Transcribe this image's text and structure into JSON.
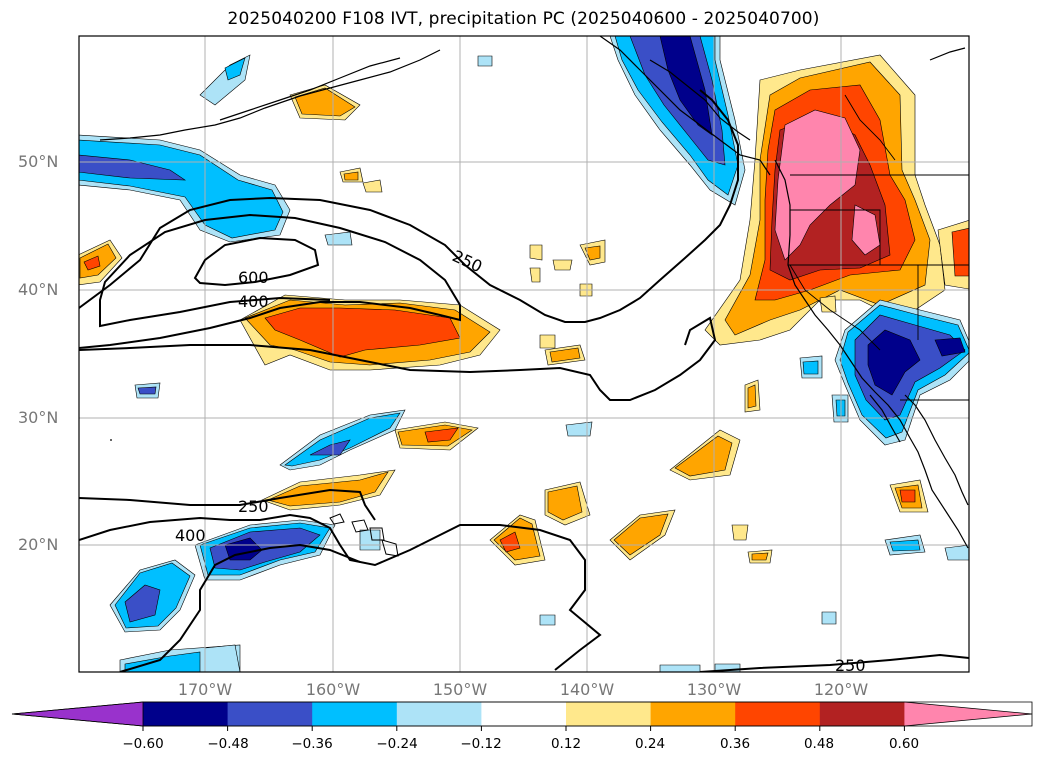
{
  "title": "2025040200 F108 IVT, precipitation PC (2025040600 - 2025040700)",
  "lat_labels": [
    "50°N",
    "40°N",
    "30°N",
    "20°N"
  ],
  "lon_labels": [
    "170°W",
    "160°W",
    "150°W",
    "140°W",
    "130°W",
    "120°W"
  ],
  "contour_labels": [
    "600",
    "400",
    "250",
    "250",
    "400",
    "250"
  ],
  "colorbar": {
    "ticks": [
      "−0.60",
      "−0.48",
      "−0.36",
      "−0.24",
      "−0.12",
      "0.12",
      "0.24",
      "0.36",
      "0.48",
      "0.60"
    ],
    "colors": [
      "#9932CC",
      "#00008B",
      "#3A4FC7",
      "#00BFFF",
      "#ADE3F7",
      "#FFFFFF",
      "#FFE88C",
      "#FFA500",
      "#FF4500",
      "#B22222",
      "#FF85AD"
    ]
  }
}
